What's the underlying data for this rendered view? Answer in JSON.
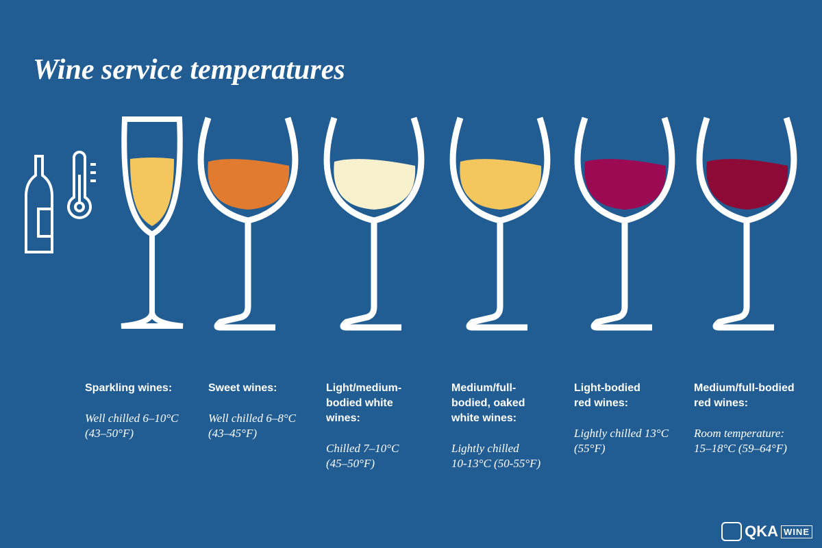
{
  "title": "Wine service temperatures",
  "wines": [
    {
      "glass": "flute",
      "color": "#f4c75e",
      "name": [
        "Sparkling wines:"
      ],
      "temperature": [
        "Well chilled 6–10°C",
        "(43–50°F)"
      ]
    },
    {
      "glass": "bowl",
      "color": "#e07b30",
      "name": [
        "Sweet wines:"
      ],
      "temperature": [
        "Well chilled 6–8°C",
        "(43–45°F)"
      ]
    },
    {
      "glass": "bowl",
      "color": "#f8f1cd",
      "name": [
        "Light/medium-",
        "bodied white",
        "wines:"
      ],
      "temperature": [
        "Chilled 7–10°C",
        "(45–50°F)"
      ]
    },
    {
      "glass": "bowl",
      "color": "#f4c75e",
      "name": [
        "Medium/full-",
        "bodied, oaked",
        "white wines:"
      ],
      "temperature": [
        "Lightly chilled",
        "10-13°C (50-55°F)"
      ]
    },
    {
      "glass": "bowl",
      "color": "#9b0a52",
      "name": [
        "Light-bodied",
        "red wines:"
      ],
      "temperature": [
        "Lightly chilled 13°C",
        "(55°F)"
      ]
    },
    {
      "glass": "bowl",
      "color": "#8d0a36",
      "name": [
        "Medium/full-bodied",
        "red wines:"
      ],
      "temperature": [
        "Room temperature:",
        "15–18°C (59–64°F)"
      ]
    }
  ],
  "logo": {
    "brand": "QKA",
    "suffix": "WINE"
  }
}
